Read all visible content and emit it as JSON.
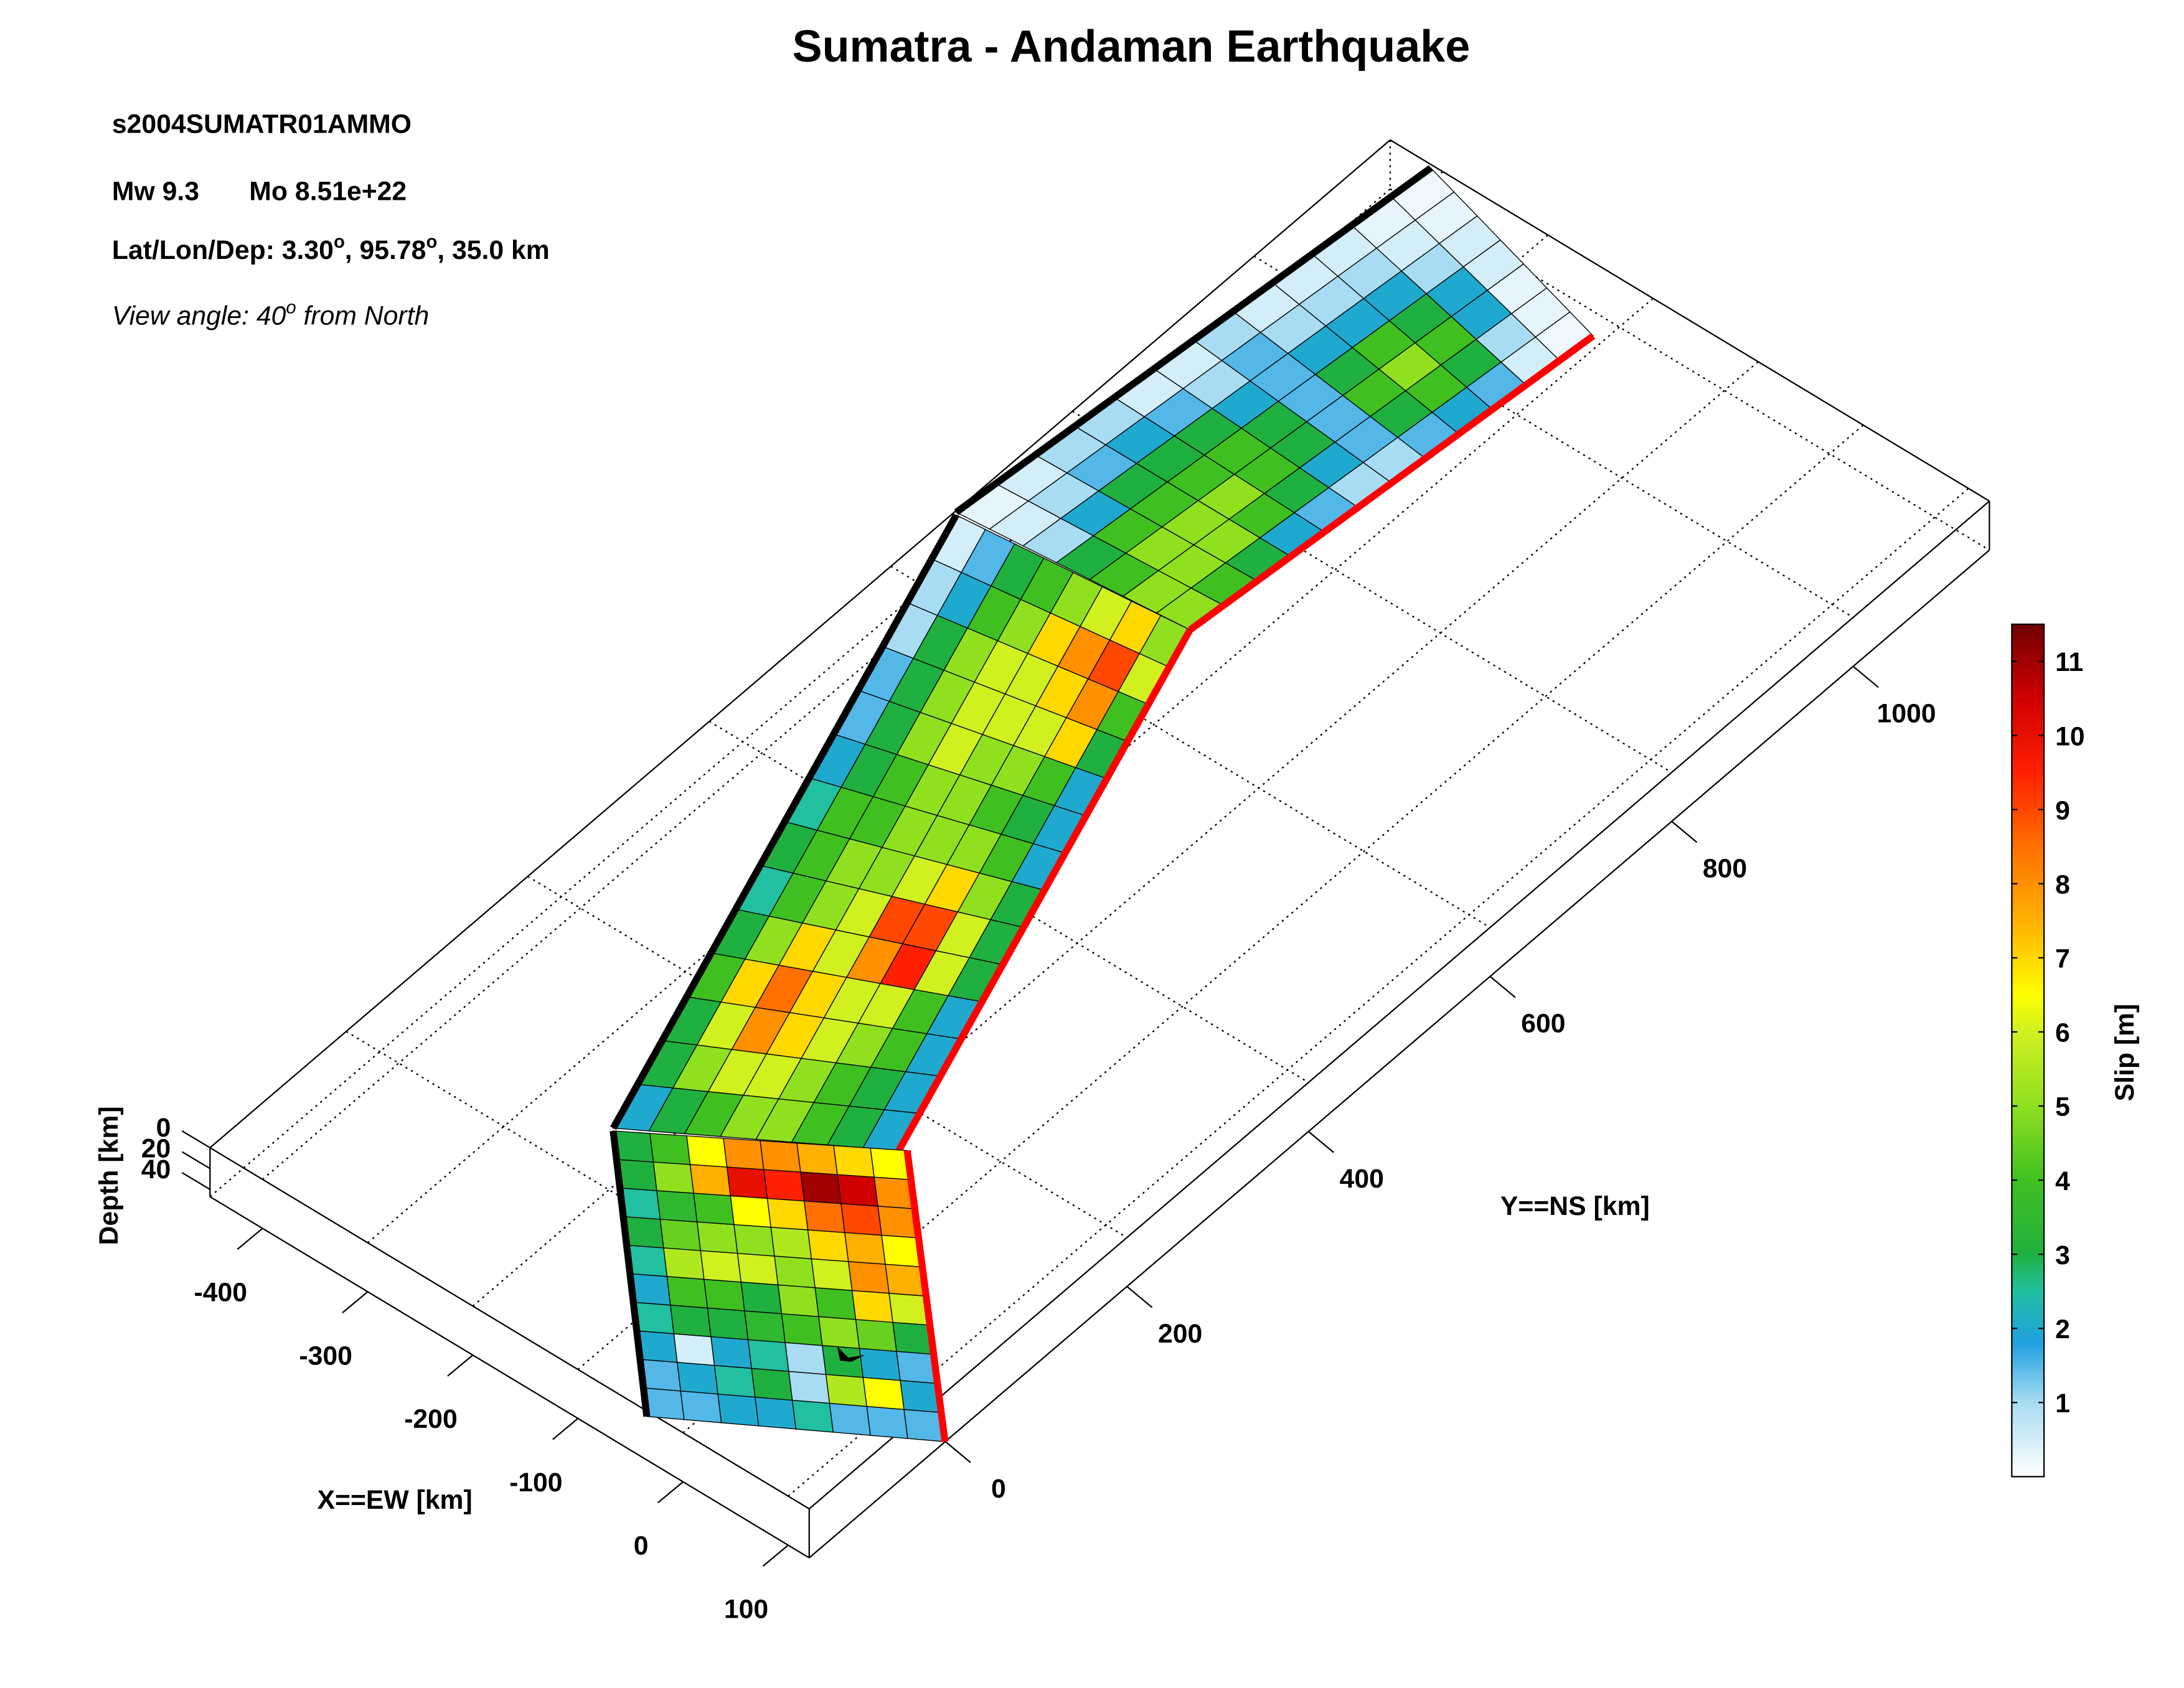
{
  "chart_data": {
    "type": "faultslip",
    "title": "Sumatra - Andaman Earthquake",
    "event_id": "s2004SUMATR01AMMO",
    "magnitude": "Mw 9.3",
    "moment": "Mo 8.51e+22",
    "location": [
      "Lat/Lon/Dep: 3.30",
      "o",
      ", 95.78",
      "o",
      ", 35.0 km"
    ],
    "view": [
      "View angle:  40",
      "o",
      " from North"
    ],
    "x_label": "X==EW [km]",
    "y_label": "Y==NS [km]",
    "z_label": "Depth [km]",
    "colorbar_label": "Slip [m]",
    "xlim": [
      -450,
      120
    ],
    "xticks": [
      -400,
      -300,
      -200,
      -100,
      0,
      100
    ],
    "ylim": [
      -150,
      1150
    ],
    "yticks": [
      0,
      200,
      400,
      600,
      800,
      1000
    ],
    "zlim": [
      0,
      47
    ],
    "zticks": [
      0,
      20,
      40
    ],
    "clim": [
      0,
      11.5
    ],
    "cticks": [
      1,
      2,
      3,
      4,
      5,
      6,
      7,
      8,
      9,
      10,
      11
    ],
    "colormap": [
      [
        0,
        "#ffffff"
      ],
      [
        1,
        "#a8dcf2"
      ],
      [
        1.8,
        "#20a0e0"
      ],
      [
        2.5,
        "#20c0a0"
      ],
      [
        3,
        "#20b040"
      ],
      [
        4,
        "#40c020"
      ],
      [
        5,
        "#90e020"
      ],
      [
        6,
        "#d0f020"
      ],
      [
        6.5,
        "#ffff00"
      ],
      [
        7.5,
        "#ffb000"
      ],
      [
        8.5,
        "#ff7000"
      ],
      [
        9.5,
        "#ff2000"
      ],
      [
        10.5,
        "#d00000"
      ],
      [
        11.5,
        "#700000"
      ]
    ],
    "grid": true,
    "segments": [
      {
        "values": [
          [
            1.5,
            1.5,
            2,
            2,
            2.5,
            1.5,
            1.5,
            1.5
          ],
          [
            1.5,
            2,
            2.5,
            3,
            1,
            5.5,
            6.5,
            2
          ],
          [
            2,
            0.5,
            2,
            2.5,
            1,
            3,
            2,
            1.5
          ],
          [
            2.5,
            3,
            3,
            3.5,
            4,
            5,
            4.5,
            3
          ],
          [
            2,
            4,
            4,
            3,
            5,
            4,
            7,
            6
          ],
          [
            2.5,
            5.5,
            6,
            6,
            5,
            6,
            8,
            7.5
          ],
          [
            3,
            4.5,
            5,
            5,
            5.5,
            7,
            7.5,
            6.5
          ],
          [
            2.5,
            3.5,
            4,
            6.5,
            7,
            8.5,
            9,
            8
          ],
          [
            3,
            5,
            7.5,
            10,
            9.5,
            11,
            10.5,
            8
          ],
          [
            3,
            4,
            6.5,
            8,
            8,
            7.5,
            7,
            6.5
          ]
        ]
      },
      {
        "values": [
          [
            2,
            3,
            4,
            5,
            5,
            4,
            3,
            2
          ],
          [
            3,
            5,
            6,
            6,
            5,
            4,
            3,
            2
          ],
          [
            3,
            6,
            8,
            7,
            6,
            5,
            4,
            2
          ],
          [
            4,
            7,
            8.5,
            7,
            6,
            6,
            4,
            2
          ],
          [
            3,
            5,
            7,
            6,
            8,
            9.5,
            6,
            3
          ],
          [
            2.5,
            4,
            5,
            6,
            9,
            9,
            6,
            3
          ],
          [
            3,
            4,
            5,
            5,
            6,
            7,
            5,
            3
          ],
          [
            2.5,
            4,
            4,
            5,
            5,
            5,
            4,
            2
          ],
          [
            2,
            3,
            4,
            5,
            5,
            4,
            3,
            2
          ],
          [
            1.5,
            3,
            5,
            6,
            5,
            5,
            4,
            2
          ],
          [
            1.5,
            3,
            5,
            6,
            6,
            6,
            7,
            3
          ],
          [
            1,
            3,
            5,
            6,
            6,
            7,
            8,
            4
          ],
          [
            1,
            2,
            4,
            5,
            7,
            8,
            9,
            6
          ],
          [
            0.5,
            1.5,
            3,
            4,
            5,
            6,
            7,
            5
          ]
        ]
      },
      {
        "values": [
          [
            0.3,
            0.5,
            1,
            3,
            4,
            5,
            5
          ],
          [
            0.5,
            1,
            2,
            4,
            5,
            5,
            4
          ],
          [
            1,
            1.5,
            3,
            4,
            5,
            5,
            3
          ],
          [
            1,
            2,
            3,
            4,
            5,
            4,
            2
          ],
          [
            0.5,
            1.5,
            3,
            4,
            4,
            3,
            1.5
          ],
          [
            0.5,
            1,
            2,
            3,
            3,
            2,
            1
          ],
          [
            1,
            1.5,
            1.5,
            1.5,
            1.5,
            1.5,
            1
          ],
          [
            0.5,
            1,
            2,
            3,
            4,
            3,
            1.5
          ],
          [
            0.5,
            1,
            2,
            4,
            5,
            4,
            2
          ],
          [
            0.5,
            1,
            2,
            3,
            4,
            3,
            1.5
          ],
          [
            0.3,
            0.5,
            1,
            2,
            2,
            1,
            0.5
          ],
          [
            0.2,
            0.3,
            0.5,
            0.5,
            0.3,
            0.3,
            0.2
          ]
        ]
      }
    ]
  }
}
